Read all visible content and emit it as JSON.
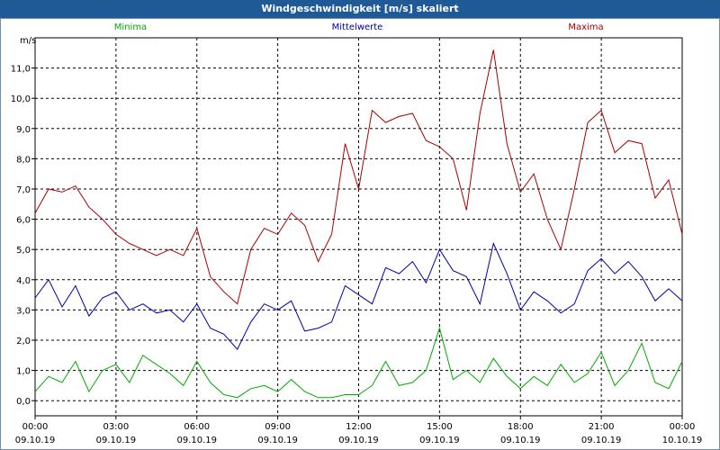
{
  "chart_data": {
    "type": "line",
    "title": "Windgeschwindigkeit [m/s] skaliert",
    "ylabel": "m/s",
    "ylim": [
      -0.5,
      12.0
    ],
    "yticks": [
      "0,0",
      "1,0",
      "2,0",
      "3,0",
      "4,0",
      "5,0",
      "6,0",
      "7,0",
      "8,0",
      "9,0",
      "10,0",
      "11,0"
    ],
    "ytick_values": [
      0,
      1,
      2,
      3,
      4,
      5,
      6,
      7,
      8,
      9,
      10,
      11
    ],
    "xlim": [
      0,
      24
    ],
    "xticks": [
      {
        "time": "00:00",
        "date": "09.10.19",
        "value": 0
      },
      {
        "time": "03:00",
        "date": "09.10.19",
        "value": 3
      },
      {
        "time": "06:00",
        "date": "09.10.19",
        "value": 6
      },
      {
        "time": "09:00",
        "date": "09.10.19",
        "value": 9
      },
      {
        "time": "12:00",
        "date": "09.10.19",
        "value": 12
      },
      {
        "time": "15:00",
        "date": "09.10.19",
        "value": 15
      },
      {
        "time": "18:00",
        "date": "09.10.19",
        "value": 18
      },
      {
        "time": "21:00",
        "date": "09.10.19",
        "value": 21
      },
      {
        "time": "00:00",
        "date": "10.10.19",
        "value": 24
      }
    ],
    "grid": true,
    "legend": "top",
    "series": [
      {
        "name": "Minima",
        "color": "#00aa00",
        "x": [
          0,
          0.5,
          1,
          1.5,
          2,
          2.5,
          3,
          3.5,
          4,
          4.5,
          5,
          5.5,
          6,
          6.5,
          7,
          7.5,
          8,
          8.5,
          9,
          9.5,
          10,
          10.5,
          11,
          11.5,
          12,
          12.5,
          13,
          13.5,
          14,
          14.5,
          15,
          15.5,
          16,
          16.5,
          17,
          17.5,
          18,
          18.5,
          19,
          19.5,
          20,
          20.5,
          21,
          21.5,
          22,
          22.5,
          23,
          23.5,
          24
        ],
        "values": [
          0.3,
          0.8,
          0.6,
          1.3,
          0.3,
          1.0,
          1.2,
          0.6,
          1.5,
          1.2,
          0.9,
          0.5,
          1.3,
          0.6,
          0.2,
          0.1,
          0.4,
          0.5,
          0.3,
          0.7,
          0.3,
          0.1,
          0.1,
          0.2,
          0.2,
          0.5,
          1.3,
          0.5,
          0.6,
          1.0,
          2.4,
          0.7,
          1.0,
          0.6,
          1.4,
          0.8,
          0.4,
          0.8,
          0.5,
          1.2,
          0.6,
          0.9,
          1.6,
          0.5,
          1.0,
          1.9,
          0.6,
          0.4,
          1.3
        ]
      },
      {
        "name": "Mittelwerte",
        "color": "#0000aa",
        "x": [
          0,
          0.5,
          1,
          1.5,
          2,
          2.5,
          3,
          3.5,
          4,
          4.5,
          5,
          5.5,
          6,
          6.5,
          7,
          7.5,
          8,
          8.5,
          9,
          9.5,
          10,
          10.5,
          11,
          11.5,
          12,
          12.5,
          13,
          13.5,
          14,
          14.5,
          15,
          15.5,
          16,
          16.5,
          17,
          17.5,
          18,
          18.5,
          19,
          19.5,
          20,
          20.5,
          21,
          21.5,
          22,
          22.5,
          23,
          23.5,
          24
        ],
        "values": [
          3.4,
          4.0,
          3.1,
          3.8,
          2.8,
          3.4,
          3.6,
          3.0,
          3.2,
          2.9,
          3.0,
          2.6,
          3.2,
          2.4,
          2.2,
          1.7,
          2.6,
          3.2,
          3.0,
          3.3,
          2.3,
          2.4,
          2.6,
          3.8,
          3.5,
          3.2,
          4.4,
          4.2,
          4.6,
          3.9,
          5.0,
          4.3,
          4.1,
          3.2,
          5.2,
          4.2,
          3.0,
          3.6,
          3.3,
          2.9,
          3.2,
          4.3,
          4.7,
          4.2,
          4.6,
          4.1,
          3.3,
          3.7,
          3.3
        ]
      },
      {
        "name": "Maxima",
        "color": "#aa0000",
        "x": [
          0,
          0.5,
          1,
          1.5,
          2,
          2.5,
          3,
          3.5,
          4,
          4.5,
          5,
          5.5,
          6,
          6.5,
          7,
          7.5,
          8,
          8.5,
          9,
          9.5,
          10,
          10.5,
          11,
          11.5,
          12,
          12.5,
          13,
          13.5,
          14,
          14.5,
          15,
          15.5,
          16,
          16.5,
          17,
          17.5,
          18,
          18.5,
          19,
          19.5,
          20,
          20.5,
          21,
          21.5,
          22,
          22.5,
          23,
          23.5,
          24
        ],
        "values": [
          6.2,
          7.0,
          6.9,
          7.1,
          6.4,
          6.0,
          5.5,
          5.2,
          5.0,
          4.8,
          5.0,
          4.8,
          5.7,
          4.1,
          3.6,
          3.2,
          5.0,
          5.7,
          5.5,
          6.2,
          5.8,
          4.6,
          5.5,
          8.5,
          7.0,
          9.6,
          9.2,
          9.4,
          9.5,
          8.6,
          8.4,
          8.0,
          6.3,
          9.5,
          11.6,
          8.5,
          6.9,
          7.5,
          6.0,
          5.0,
          7.0,
          9.2,
          9.6,
          8.2,
          8.6,
          8.5,
          6.7,
          7.3,
          5.5
        ]
      }
    ]
  }
}
